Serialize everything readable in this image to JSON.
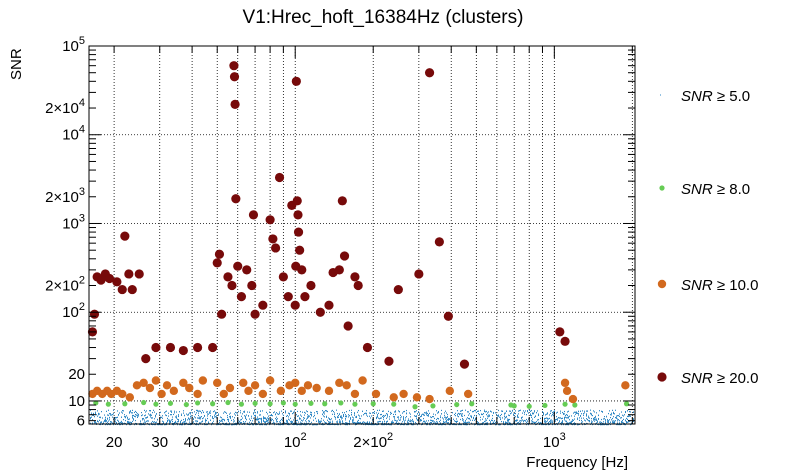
{
  "chart_data": {
    "type": "scatter",
    "title": "V1:Hrec_hoft_16384Hz (clusters)",
    "xlabel": "Frequency [Hz]",
    "ylabel": "SNR",
    "xscale": "log",
    "yscale": "log",
    "xlim": [
      16,
      2048
    ],
    "ylim": [
      5.5,
      100000
    ],
    "grid": true,
    "legend_position": "right",
    "x_ticks": [
      {
        "value": 20,
        "label": "20"
      },
      {
        "value": 30,
        "label": "30"
      },
      {
        "value": 40,
        "label": "40"
      },
      {
        "value": 100,
        "label": "10^2"
      },
      {
        "value": 200,
        "label": "2×10^2"
      },
      {
        "value": 1000,
        "label": "10^3"
      }
    ],
    "y_ticks": [
      {
        "value": 6,
        "label": "6"
      },
      {
        "value": 10,
        "label": "10"
      },
      {
        "value": 20,
        "label": "20"
      },
      {
        "value": 100,
        "label": "10^2"
      },
      {
        "value": 200,
        "label": "2×10^2"
      },
      {
        "value": 1000,
        "label": "10^3"
      },
      {
        "value": 2000,
        "label": "2×10^3"
      },
      {
        "value": 10000,
        "label": "10^4"
      },
      {
        "value": 20000,
        "label": "2×10^4"
      },
      {
        "value": 100000,
        "label": "10^5"
      }
    ],
    "series": [
      {
        "name": "SNR ≥ 5.0",
        "color": "#2b86c4",
        "marker": "dot",
        "description_range": {
          "x": [
            16,
            2048
          ],
          "y": [
            5.5,
            8
          ]
        }
      },
      {
        "name": "SNR ≥ 8.0",
        "color": "#66cc55",
        "marker": "circle",
        "points": [
          [
            17,
            9.5
          ],
          [
            19,
            9.2
          ],
          [
            22,
            9.3
          ],
          [
            26,
            9.6
          ],
          [
            29,
            9.2
          ],
          [
            33,
            9.4
          ],
          [
            38,
            9.1
          ],
          [
            42,
            9.5
          ],
          [
            48,
            9.3
          ],
          [
            55,
            9.6
          ],
          [
            62,
            9.2
          ],
          [
            70,
            9.4
          ],
          [
            80,
            9.3
          ],
          [
            90,
            9.5
          ],
          [
            100,
            9.2
          ],
          [
            115,
            9.4
          ],
          [
            130,
            9.3
          ],
          [
            150,
            9.5
          ],
          [
            170,
            9.2
          ],
          [
            200,
            9.3
          ],
          [
            240,
            9.2
          ],
          [
            290,
            8.6
          ],
          [
            340,
            8.8
          ],
          [
            420,
            9.1
          ],
          [
            480,
            9.3
          ],
          [
            680,
            9.0
          ],
          [
            700,
            8.8
          ],
          [
            800,
            8.7
          ],
          [
            920,
            8.9
          ],
          [
            1100,
            9.2
          ],
          [
            1200,
            9.0
          ],
          [
            1900,
            9.3
          ]
        ]
      },
      {
        "name": "SNR ≥ 10.0",
        "color": "#d2691e",
        "marker": "circle",
        "points": [
          [
            16.5,
            12
          ],
          [
            17.2,
            13
          ],
          [
            18,
            12
          ],
          [
            18.8,
            13
          ],
          [
            19.5,
            12
          ],
          [
            20.5,
            13
          ],
          [
            21.5,
            12
          ],
          [
            23,
            11
          ],
          [
            24.5,
            15
          ],
          [
            26,
            16
          ],
          [
            27.5,
            14
          ],
          [
            29,
            17
          ],
          [
            30.5,
            12
          ],
          [
            32,
            15
          ],
          [
            34,
            13
          ],
          [
            37,
            16
          ],
          [
            39,
            14
          ],
          [
            42,
            12
          ],
          [
            44,
            17
          ],
          [
            50,
            16
          ],
          [
            53,
            12
          ],
          [
            56,
            14
          ],
          [
            63,
            16
          ],
          [
            66,
            13
          ],
          [
            70,
            15
          ],
          [
            75,
            12
          ],
          [
            80,
            17
          ],
          [
            88,
            13
          ],
          [
            95,
            15
          ],
          [
            100,
            16
          ],
          [
            106,
            13
          ],
          [
            112,
            15
          ],
          [
            121,
            14
          ],
          [
            135,
            13
          ],
          [
            148,
            16
          ],
          [
            158,
            15
          ],
          [
            170,
            12
          ],
          [
            182,
            17
          ],
          [
            205,
            12
          ],
          [
            240,
            11
          ],
          [
            262,
            12
          ],
          [
            295,
            11
          ],
          [
            330,
            10.5
          ],
          [
            395,
            13
          ],
          [
            465,
            12
          ],
          [
            1100,
            16
          ],
          [
            1120,
            13
          ],
          [
            1180,
            10.5
          ],
          [
            1880,
            15
          ]
        ]
      },
      {
        "name": "SNR ≥ 20.0",
        "color": "#770a0a",
        "marker": "circle",
        "points": [
          [
            16.5,
            60
          ],
          [
            16.8,
            95
          ],
          [
            17.2,
            250
          ],
          [
            17.8,
            230
          ],
          [
            18.5,
            270
          ],
          [
            19.2,
            240
          ],
          [
            20.5,
            220
          ],
          [
            21.5,
            180
          ],
          [
            22,
            720
          ],
          [
            22.8,
            270
          ],
          [
            23.5,
            180
          ],
          [
            25,
            270
          ],
          [
            26.5,
            30
          ],
          [
            29,
            40
          ],
          [
            33,
            40
          ],
          [
            37,
            37
          ],
          [
            42,
            40
          ],
          [
            48,
            40
          ],
          [
            50,
            360
          ],
          [
            51,
            450
          ],
          [
            52,
            95
          ],
          [
            55,
            250
          ],
          [
            57,
            200
          ],
          [
            58,
            60000
          ],
          [
            58.3,
            45000
          ],
          [
            58.6,
            22000
          ],
          [
            59,
            1900
          ],
          [
            60,
            330
          ],
          [
            62,
            150
          ],
          [
            65,
            300
          ],
          [
            68,
            200
          ],
          [
            69,
            1250
          ],
          [
            70,
            95
          ],
          [
            75,
            120
          ],
          [
            80,
            1100
          ],
          [
            82,
            670
          ],
          [
            84,
            530
          ],
          [
            87,
            3300
          ],
          [
            90,
            250
          ],
          [
            94,
            150
          ],
          [
            97,
            1600
          ],
          [
            100,
            120
          ],
          [
            100.5,
            330
          ],
          [
            101,
            40000
          ],
          [
            101.8,
            1800
          ],
          [
            102.5,
            1250
          ],
          [
            103,
            800
          ],
          [
            104,
            500
          ],
          [
            106,
            300
          ],
          [
            109,
            150
          ],
          [
            115,
            200
          ],
          [
            125,
            100
          ],
          [
            135,
            120
          ],
          [
            140,
            280
          ],
          [
            148,
            300
          ],
          [
            152,
            1800
          ],
          [
            155,
            430
          ],
          [
            160,
            70
          ],
          [
            170,
            250
          ],
          [
            175,
            200
          ],
          [
            190,
            40
          ],
          [
            230,
            28
          ],
          [
            250,
            180
          ],
          [
            300,
            270
          ],
          [
            330,
            50000
          ],
          [
            360,
            620
          ],
          [
            390,
            90
          ],
          [
            450,
            26
          ],
          [
            1050,
            60
          ],
          [
            1100,
            47
          ]
        ]
      }
    ]
  }
}
